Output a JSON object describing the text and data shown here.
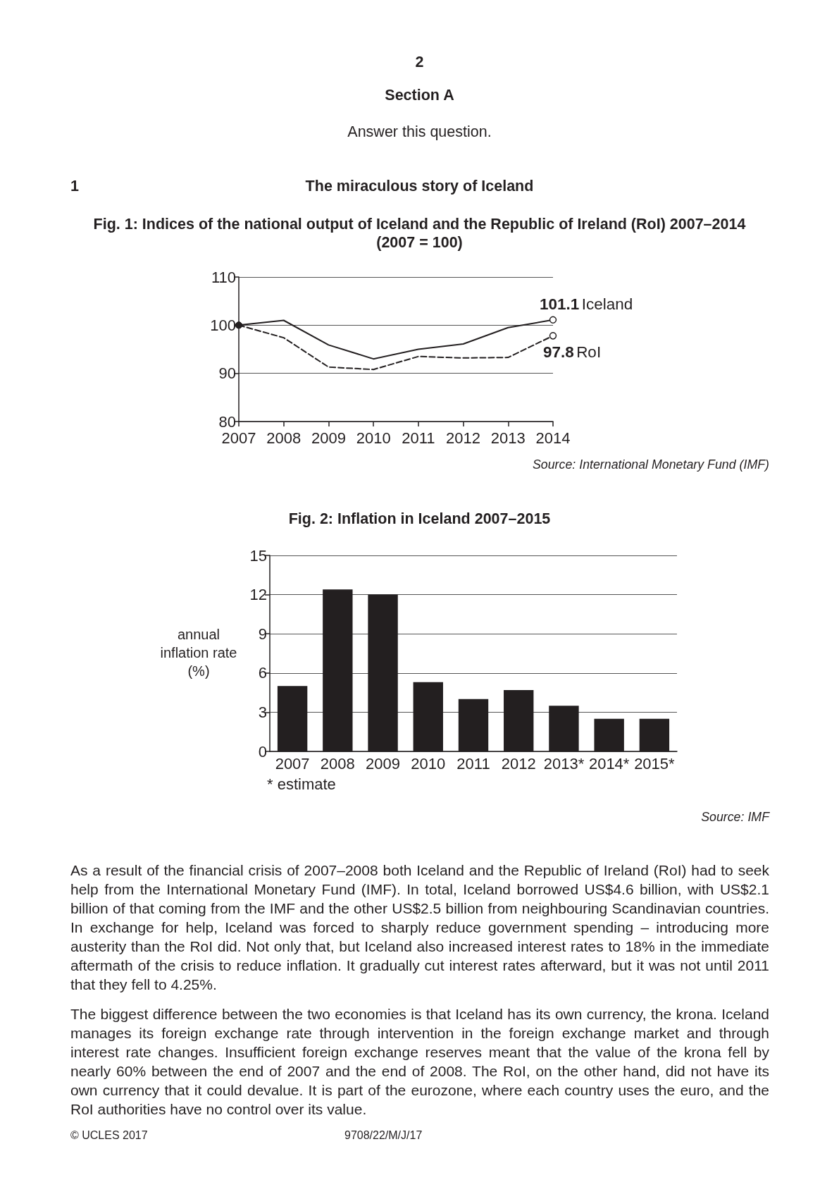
{
  "chart_data": [
    {
      "type": "other",
      "annotations": [
        "2",
        "Section A",
        "Answer this question.",
        "1",
        "The miraculous story of Iceland"
      ]
    },
    {
      "type": "line",
      "title": "Fig. 1: Indices of the national output of Iceland and the Republic of Ireland (RoI) 2007–2014",
      "subtitle": "(2007 = 100)",
      "categories": [
        "2007",
        "2008",
        "2009",
        "2010",
        "2011",
        "2012",
        "2013",
        "2014"
      ],
      "series": [
        {
          "name": "Iceland",
          "color": "#231f20",
          "line_style": "solid",
          "values": [
            100,
            101,
            95.9,
            93,
            95,
            96.1,
            99.5,
            101.1
          ],
          "value_labels": [
            null,
            null,
            null,
            null,
            null,
            null,
            null,
            "101.1"
          ]
        },
        {
          "name": "RoI",
          "color": "#231f20",
          "line_style": "dashed",
          "values": [
            100,
            97.4,
            91.3,
            90.8,
            93.5,
            93.2,
            93.3,
            97.8
          ],
          "value_labels": [
            null,
            null,
            null,
            null,
            null,
            null,
            null,
            "97.8"
          ]
        }
      ],
      "ylim": [
        80,
        110
      ],
      "yticks": [
        80,
        90,
        100,
        110
      ],
      "grid": "y",
      "annotations": [
        "Source: International Monetary Fund (IMF)"
      ]
    },
    {
      "type": "bar",
      "title": "Fig. 2: Inflation in Iceland 2007–2015",
      "ylabel": "annual inflation rate (%)",
      "categories": [
        "2007",
        "2008",
        "2009",
        "2010",
        "2011",
        "2012",
        "2013*",
        "2014*",
        "2015*"
      ],
      "values": [
        5,
        12.4,
        12,
        5.3,
        4,
        4.7,
        3.5,
        2.5,
        2.5
      ],
      "color": "#231f20",
      "ylim": [
        0,
        15
      ],
      "yticks": [
        0,
        3,
        6,
        9,
        12,
        15
      ],
      "grid": "y",
      "annotations": [
        "* estimate",
        "Source: IMF"
      ]
    },
    {
      "type": "other",
      "annotations": [
        "As a result of the financial crisis of 2007–2008 both Iceland and the Republic of Ireland (RoI) had to seek help from the International Monetary Fund (IMF). In total, Iceland borrowed US$4.6 billion, with US$2.1 billion of that coming from the IMF and the other US$2.5 billion from neighbouring Scandinavian countries. In exchange for help, Iceland was forced to sharply reduce government spending – introducing more austerity than the RoI did. Not only that, but Iceland also increased interest rates to 18% in the immediate aftermath of the crisis to reduce inflation. It gradually cut interest rates afterward, but it was not until 2011 that they fell to 4.25%.",
        "The biggest difference between the two economies is that Iceland has its own currency, the krona. Iceland manages its foreign exchange rate through intervention in the foreign exchange market and through interest rate changes. Insufficient foreign exchange reserves meant that the value of the krona fell by nearly 60% between the end of 2007 and the end of 2008. The RoI, on the other hand, did not have its own currency that it could devalue. It is part of the eurozone, where each country uses the euro, and the RoI authorities have no control over its value.",
        "© UCLES 2017",
        "9708/22/M/J/17"
      ]
    }
  ]
}
